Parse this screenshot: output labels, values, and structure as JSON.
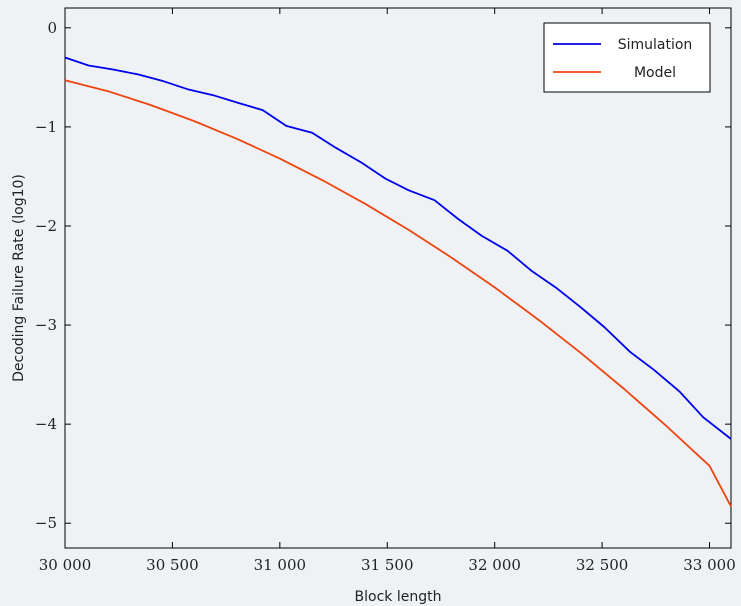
{
  "chart_data": {
    "type": "line",
    "title": "",
    "xlabel": "Block length",
    "ylabel": "Decoding Failure Rate (log10)",
    "xlim": [
      30000,
      33100
    ],
    "ylim": [
      -5.25,
      0.2
    ],
    "xticks": [
      30000,
      30500,
      31000,
      31500,
      32000,
      32500,
      33000
    ],
    "xtick_labels": [
      "30 000",
      "30 500",
      "31 000",
      "31 500",
      "32 000",
      "32 500",
      "33 000"
    ],
    "yticks": [
      0,
      -1,
      -2,
      -3,
      -4,
      -5
    ],
    "ytick_labels": [
      "0",
      "−1",
      "−2",
      "−3",
      "−4",
      "−5"
    ],
    "grid": false,
    "legend": "top-right",
    "series": [
      {
        "name": "Simulation",
        "color": "#0000ee",
        "x": [
          30000,
          30110,
          30220,
          30340,
          30460,
          30570,
          30690,
          30810,
          30920,
          31030,
          31150,
          31260,
          31380,
          31490,
          31600,
          31720,
          31830,
          31940,
          32060,
          32170,
          32290,
          32400,
          32510,
          32630,
          32740,
          32860,
          32970,
          33100
        ],
        "values": [
          -0.3,
          -0.38,
          -0.42,
          -0.47,
          -0.54,
          -0.62,
          -0.68,
          -0.76,
          -0.83,
          -0.99,
          -1.06,
          -1.21,
          -1.36,
          -1.52,
          -1.64,
          -1.74,
          -1.93,
          -2.1,
          -2.25,
          -2.45,
          -2.63,
          -2.82,
          -3.02,
          -3.27,
          -3.45,
          -3.67,
          -3.93,
          -4.15
        ]
      },
      {
        "name": "Model",
        "color": "#ee4411",
        "x": [
          30000,
          30200,
          30400,
          30600,
          30800,
          31000,
          31200,
          31400,
          31600,
          31800,
          32000,
          32200,
          32400,
          32600,
          32800,
          33000,
          33100
        ],
        "values": [
          -0.53,
          -0.64,
          -0.78,
          -0.94,
          -1.12,
          -1.32,
          -1.54,
          -1.78,
          -2.04,
          -2.32,
          -2.62,
          -2.94,
          -3.28,
          -3.64,
          -4.02,
          -4.42,
          -4.83
        ]
      }
    ]
  }
}
